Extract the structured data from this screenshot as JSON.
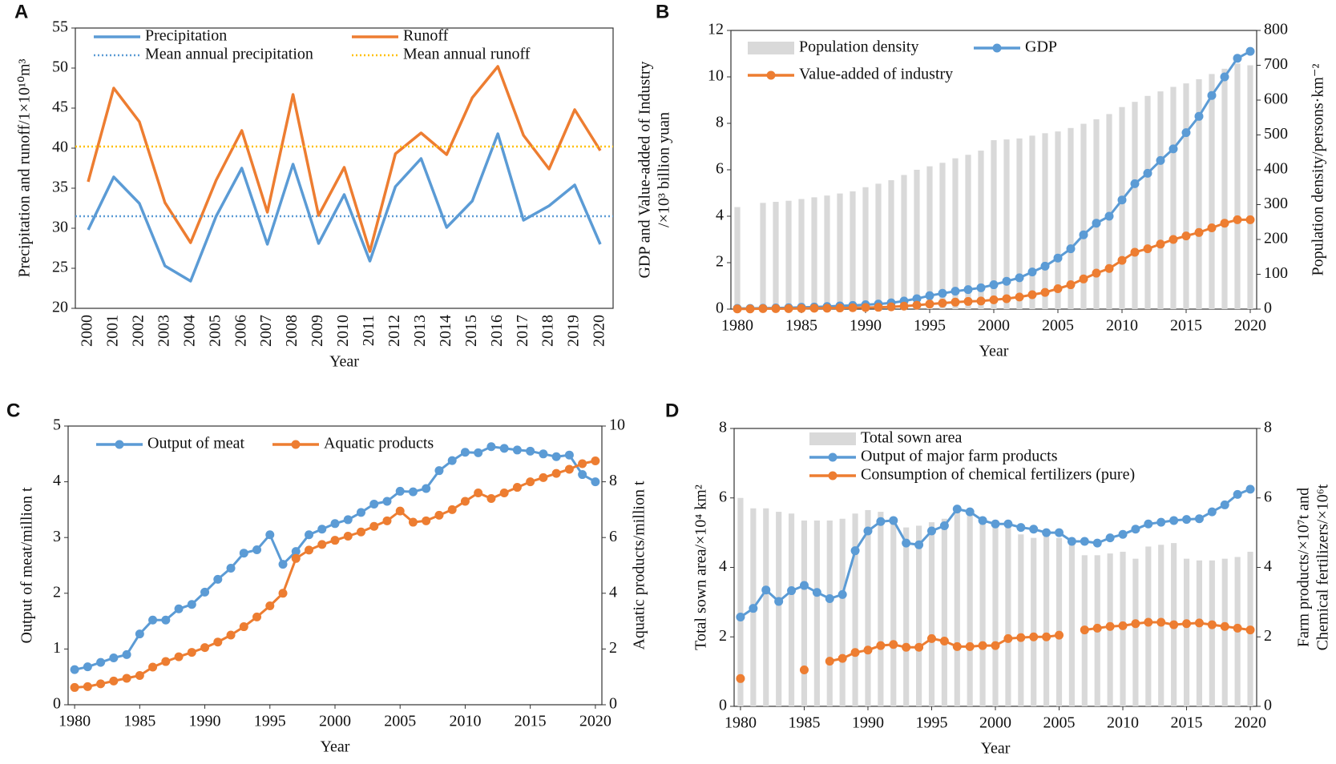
{
  "chart_data": [
    {
      "type": "line",
      "panel_label": "A",
      "ylabel": [
        "Precipitation and runoff/1×10¹⁰m³"
      ],
      "xlabel": "Year",
      "categories": [
        "2000",
        "2001",
        "2002",
        "2003",
        "2004",
        "2005",
        "2006",
        "2007",
        "2008",
        "2009",
        "2010",
        "2011",
        "2012",
        "2013",
        "2014",
        "2015",
        "2016",
        "2017",
        "2018",
        "2019",
        "2020"
      ],
      "series": [
        {
          "name": "Precipitation",
          "color": "#5b9bd5",
          "type": "line",
          "values": [
            29.8,
            36.4,
            33.1,
            25.3,
            23.4,
            31.5,
            37.5,
            28.0,
            38.0,
            28.1,
            34.2,
            25.9,
            35.2,
            38.7,
            30.1,
            33.4,
            41.8,
            31.0,
            32.8,
            35.4,
            28.0
          ]
        },
        {
          "name": "Runoff",
          "color": "#ed7d31",
          "type": "line",
          "values": [
            35.8,
            47.5,
            43.3,
            33.2,
            28.2,
            36.0,
            42.2,
            32.0,
            46.7,
            31.6,
            37.6,
            27.1,
            39.3,
            41.9,
            39.2,
            46.3,
            50.2,
            41.6,
            37.4,
            44.8,
            39.7
          ]
        }
      ],
      "mean_lines": [
        {
          "name": "Mean annual precipitation",
          "color": "#5b9bd5",
          "value": 31.5
        },
        {
          "name": "Mean annual runoff",
          "color": "#ffc000",
          "value": 40.2
        }
      ],
      "ylim": [
        20,
        55
      ],
      "yticks": [
        20,
        25,
        30,
        35,
        40,
        45,
        50,
        55
      ]
    },
    {
      "type": "combo",
      "panel_label": "B",
      "ylabel": [
        "GDP and Value-added of Industry",
        "/×10³ billion yuan"
      ],
      "y2label": [
        "Population density/persons·km⁻²"
      ],
      "xlabel": "Year",
      "x": [
        1980,
        1981,
        1982,
        1983,
        1984,
        1985,
        1986,
        1987,
        1988,
        1989,
        1990,
        1991,
        1992,
        1993,
        1994,
        1995,
        1996,
        1997,
        1998,
        1999,
        2000,
        2001,
        2002,
        2003,
        2004,
        2005,
        2006,
        2007,
        2008,
        2009,
        2010,
        2011,
        2012,
        2013,
        2014,
        2015,
        2016,
        2017,
        2018,
        2019,
        2020
      ],
      "series": [
        {
          "name": "Population density",
          "color": "#d9d9d9",
          "type": "bar",
          "axis": "y2",
          "values": [
            293,
            null,
            305,
            308,
            311,
            316,
            321,
            326,
            332,
            338,
            350,
            360,
            370,
            385,
            400,
            410,
            420,
            433,
            443,
            455,
            485,
            487,
            490,
            498,
            505,
            510,
            520,
            532,
            545,
            560,
            580,
            595,
            612,
            625,
            638,
            648,
            660,
            675,
            690,
            705,
            700
          ]
        },
        {
          "name": "GDP",
          "color": "#5b9bd5",
          "type": "line",
          "marker": true,
          "values": [
            0.03,
            0.03,
            0.04,
            0.05,
            0.06,
            0.08,
            0.09,
            0.11,
            0.14,
            0.16,
            0.19,
            0.22,
            0.27,
            0.35,
            0.45,
            0.58,
            0.68,
            0.77,
            0.84,
            0.92,
            1.05,
            1.2,
            1.35,
            1.6,
            1.85,
            2.2,
            2.6,
            3.2,
            3.7,
            4.0,
            4.7,
            5.4,
            5.85,
            6.4,
            6.9,
            7.6,
            8.3,
            9.2,
            10.0,
            10.8,
            11.1
          ]
        },
        {
          "name": "Value-added of industry",
          "color": "#ed7d31",
          "type": "line",
          "marker": true,
          "values": [
            0.01,
            0.01,
            0.02,
            0.02,
            0.02,
            0.03,
            0.04,
            0.04,
            0.05,
            0.06,
            0.07,
            0.08,
            0.1,
            0.13,
            0.17,
            0.22,
            0.26,
            0.3,
            0.33,
            0.35,
            0.4,
            0.45,
            0.52,
            0.62,
            0.72,
            0.88,
            1.05,
            1.3,
            1.55,
            1.75,
            2.1,
            2.45,
            2.6,
            2.8,
            3.0,
            3.15,
            3.3,
            3.5,
            3.7,
            3.85,
            3.85
          ]
        }
      ],
      "xlim": [
        1979.5,
        2020.5
      ],
      "xticks": [
        1980,
        1985,
        1990,
        1995,
        2000,
        2005,
        2010,
        2015,
        2020
      ],
      "ylim": [
        0,
        12
      ],
      "yticks": [
        0,
        2,
        4,
        6,
        8,
        10,
        12
      ],
      "y2lim": [
        0,
        800
      ],
      "y2ticks": [
        0,
        100,
        200,
        300,
        400,
        500,
        600,
        700,
        800
      ]
    },
    {
      "type": "combo",
      "panel_label": "C",
      "ylabel": [
        "Output of meat/million t"
      ],
      "y2label": [
        "Aquatic products/million t"
      ],
      "xlabel": "Year",
      "x": [
        1980,
        1981,
        1982,
        1983,
        1984,
        1985,
        1986,
        1987,
        1988,
        1989,
        1990,
        1991,
        1992,
        1993,
        1994,
        1995,
        1996,
        1997,
        1998,
        1999,
        2000,
        2001,
        2002,
        2003,
        2004,
        2005,
        2006,
        2007,
        2008,
        2009,
        2010,
        2011,
        2012,
        2013,
        2014,
        2015,
        2016,
        2017,
        2018,
        2019,
        2020
      ],
      "series": [
        {
          "name": "Output of meat",
          "color": "#5b9bd5",
          "type": "line",
          "marker": true,
          "values": [
            0.63,
            0.68,
            0.76,
            0.84,
            0.9,
            1.27,
            1.52,
            1.52,
            1.72,
            1.8,
            2.02,
            2.25,
            2.45,
            2.72,
            2.78,
            3.05,
            2.52,
            2.75,
            3.05,
            3.15,
            3.25,
            3.32,
            3.45,
            3.6,
            3.65,
            3.83,
            3.82,
            3.88,
            4.2,
            4.38,
            4.53,
            4.52,
            4.63,
            4.6,
            4.57,
            4.55,
            4.5,
            4.45,
            4.48,
            4.13,
            4.0
          ]
        },
        {
          "name": "Aquatic products",
          "color": "#ed7d31",
          "type": "line",
          "marker": true,
          "axis": "y2",
          "values": [
            0.62,
            0.65,
            0.75,
            0.85,
            0.95,
            1.05,
            1.35,
            1.55,
            1.72,
            1.88,
            2.05,
            2.25,
            2.5,
            2.8,
            3.15,
            3.55,
            4.0,
            5.25,
            5.55,
            5.75,
            5.9,
            6.05,
            6.2,
            6.4,
            6.6,
            6.95,
            6.55,
            6.6,
            6.8,
            7.0,
            7.3,
            7.6,
            7.4,
            7.6,
            7.8,
            8.0,
            8.15,
            8.3,
            8.45,
            8.65,
            8.75
          ]
        }
      ],
      "xlim": [
        1979.5,
        2020.5
      ],
      "xticks": [
        1980,
        1985,
        1990,
        1995,
        2000,
        2005,
        2010,
        2015,
        2020
      ],
      "ylim": [
        0,
        5
      ],
      "yticks": [
        0,
        1,
        2,
        3,
        4,
        5
      ],
      "y2lim": [
        0,
        10
      ],
      "y2ticks": [
        0,
        2,
        4,
        6,
        8,
        10
      ]
    },
    {
      "type": "combo",
      "panel_label": "D",
      "ylabel": [
        "Total sown area/×10⁴ km²"
      ],
      "y2label": [
        "Farm products/×10⁷t and",
        "Chemical fertilizers/×10⁶t"
      ],
      "xlabel": "Year",
      "x": [
        1980,
        1981,
        1982,
        1983,
        1984,
        1985,
        1986,
        1987,
        1988,
        1989,
        1990,
        1991,
        1992,
        1993,
        1994,
        1995,
        1996,
        1997,
        1998,
        1999,
        2000,
        2001,
        2002,
        2003,
        2004,
        2005,
        2006,
        2007,
        2008,
        2009,
        2010,
        2011,
        2012,
        2013,
        2014,
        2015,
        2016,
        2017,
        2018,
        2019,
        2020
      ],
      "series": [
        {
          "name": "Total sown area",
          "color": "#d9d9d9",
          "type": "bar",
          "values": [
            6.0,
            5.7,
            5.7,
            5.6,
            5.55,
            5.35,
            5.35,
            5.35,
            5.4,
            5.55,
            5.65,
            5.6,
            5.3,
            5.15,
            5.2,
            5.3,
            5.4,
            5.6,
            5.55,
            5.4,
            5.25,
            5.15,
            4.95,
            4.85,
            4.9,
            4.85,
            4.8,
            4.35,
            4.35,
            4.4,
            4.45,
            4.25,
            4.6,
            4.65,
            4.7,
            4.25,
            4.2,
            4.2,
            4.25,
            4.3,
            4.45
          ]
        },
        {
          "name": "Output of major farm products",
          "color": "#5b9bd5",
          "type": "line",
          "marker": true,
          "axis": "y2",
          "values": [
            2.57,
            2.82,
            3.35,
            3.02,
            3.33,
            3.48,
            3.28,
            3.1,
            3.22,
            4.48,
            5.05,
            5.32,
            5.35,
            4.7,
            4.65,
            5.05,
            5.2,
            5.68,
            5.6,
            5.35,
            5.25,
            5.25,
            5.15,
            5.1,
            5.0,
            5.0,
            4.75,
            4.75,
            4.7,
            4.85,
            4.95,
            5.1,
            5.25,
            5.3,
            5.35,
            5.38,
            5.4,
            5.6,
            5.8,
            6.1,
            6.25
          ]
        },
        {
          "name": "Consumption of chemical fertilizers (pure)",
          "color": "#ed7d31",
          "type": "line",
          "marker": true,
          "axis": "y2",
          "values": [
            0.8,
            null,
            null,
            null,
            null,
            1.05,
            null,
            1.3,
            1.38,
            1.55,
            1.62,
            1.75,
            1.78,
            1.7,
            1.7,
            1.95,
            1.88,
            1.72,
            1.72,
            1.75,
            1.75,
            1.95,
            1.98,
            2.0,
            2.0,
            2.05,
            null,
            2.2,
            2.25,
            2.3,
            2.32,
            2.38,
            2.42,
            2.42,
            2.35,
            2.38,
            2.4,
            2.35,
            2.3,
            2.25,
            2.2
          ]
        }
      ],
      "xlim": [
        1979.5,
        2020.5
      ],
      "xticks": [
        1980,
        1985,
        1990,
        1995,
        2000,
        2005,
        2010,
        2015,
        2020
      ],
      "ylim": [
        0,
        8
      ],
      "yticks": [
        0,
        2,
        4,
        6,
        8
      ],
      "y2lim": [
        0,
        8
      ],
      "y2ticks": [
        0,
        2,
        4,
        6,
        8
      ]
    }
  ]
}
